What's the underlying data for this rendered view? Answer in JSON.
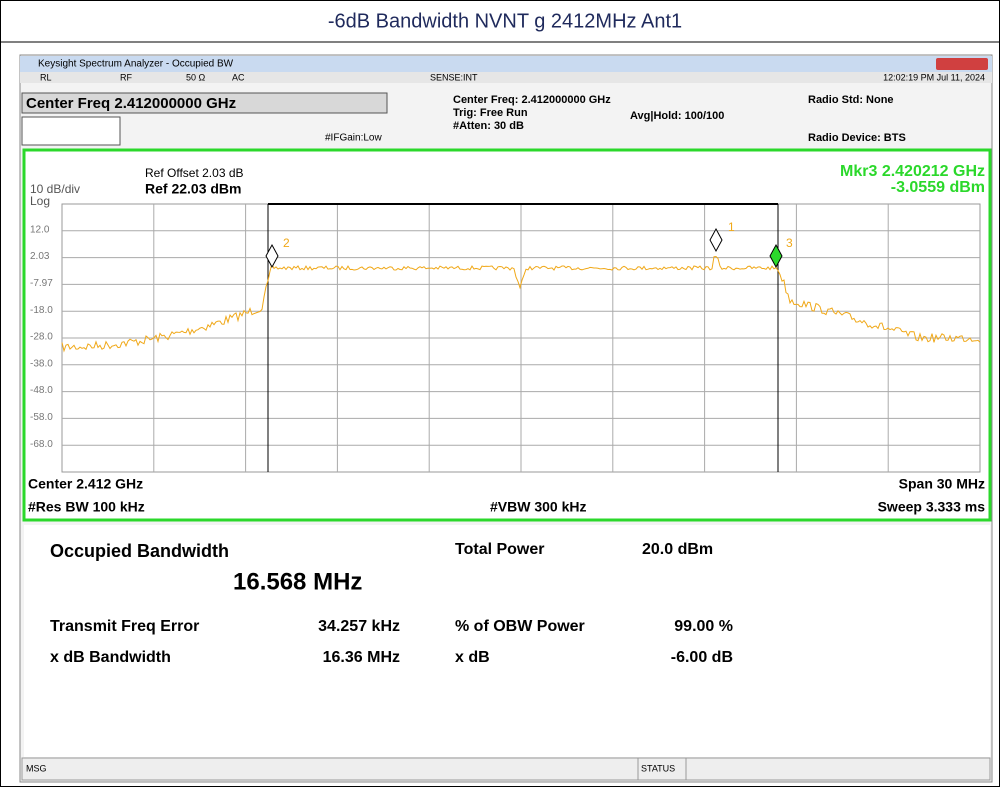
{
  "title": "-6dB Bandwidth NVNT g 2412MHz Ant1",
  "window": {
    "title": "Keysight Spectrum Analyzer - Occupied BW",
    "status": [
      "RL",
      "RF",
      "50 Ω",
      "AC",
      "SENSE:INT",
      "12:02:19 PM Jul 11, 2024"
    ]
  },
  "settings": {
    "center_box": "Center Freq 2.412000000 GHz",
    "if_gain": "#IFGain:Low",
    "center_freq": "Center Freq: 2.412000000 GHz",
    "trig": "Trig: Free Run",
    "atten": "#Atten: 30 dB",
    "avg_hold": "Avg|Hold: 100/100",
    "radio_std": "Radio Std: None",
    "radio_device": "Radio Device: BTS"
  },
  "plot": {
    "ref_offset": "Ref Offset 2.03 dB",
    "ref_level": "Ref 22.03 dBm",
    "scale": "10 dB/div",
    "scale_type": "Log",
    "marker_readout": "Mkr3  2.420212 GHz",
    "marker_value": "-3.0559 dBm",
    "y_labels": [
      "12.0",
      "2.03",
      "-7.97",
      "-18.0",
      "-28.0",
      "-38.0",
      "-48.0",
      "-58.0",
      "-68.0"
    ],
    "markers": [
      "1",
      "2",
      "3"
    ],
    "center": "Center  2.412 GHz",
    "span": "Span 30 MHz",
    "res_bw": "#Res BW  100 kHz",
    "vbw": "#VBW  300 kHz",
    "sweep": "Sweep  3.333 ms"
  },
  "results": {
    "obw_label": "Occupied Bandwidth",
    "obw_value": "16.568 MHz",
    "total_power_label": "Total Power",
    "total_power_value": "20.0 dBm",
    "freq_error_label": "Transmit Freq Error",
    "freq_error_value": "34.257 kHz",
    "obw_power_label": "% of OBW Power",
    "obw_power_value": "99.00 %",
    "xdb_bw_label": "x dB Bandwidth",
    "xdb_bw_value": "16.36 MHz",
    "xdb_label": "x dB",
    "xdb_value": "-6.00 dB"
  },
  "status_bar": {
    "msg": "MSG",
    "status": "STATUS"
  }
}
